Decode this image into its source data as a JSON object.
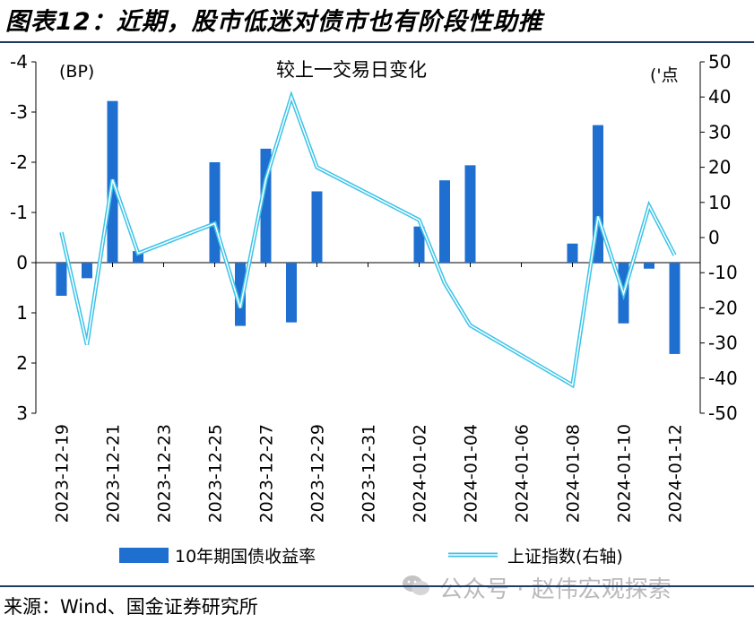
{
  "figure_title": "图表12：近期，股市低迷对债市也有阶段性助推",
  "source": "来源：Wind、国金证券研究所",
  "watermark": "公众号 · 赵伟宏观探索",
  "colors": {
    "bar": "#1f6fd1",
    "line": "#3cc3e8",
    "rule": "#1f3b64"
  },
  "chart_data": {
    "type": "bar",
    "title": "较上一交易日变化",
    "left_axis_unit": "(BP)",
    "right_axis_unit": "('点",
    "left_axis": {
      "min": -4,
      "max": 3,
      "inverted": true,
      "ticks": [
        -4,
        -3,
        -2,
        -1,
        0,
        1,
        2,
        3
      ]
    },
    "right_axis": {
      "min": -50,
      "max": 50,
      "ticks": [
        50,
        40,
        30,
        20,
        10,
        0,
        -10,
        -20,
        -30,
        -40,
        -50
      ]
    },
    "x_tick_labels": [
      "2023-12-19",
      "2023-12-21",
      "2023-12-23",
      "2023-12-25",
      "2023-12-27",
      "2023-12-29",
      "2023-12-31",
      "2024-01-02",
      "2024-01-04",
      "2024-01-06",
      "2024-01-08",
      "2024-01-10",
      "2024-01-12"
    ],
    "categories": [
      "2023-12-19",
      "2023-12-20",
      "2023-12-21",
      "2023-12-22",
      "2023-12-25",
      "2023-12-26",
      "2023-12-27",
      "2023-12-28",
      "2023-12-29",
      "2024-01-02",
      "2024-01-03",
      "2024-01-04",
      "2024-01-05",
      "2024-01-08",
      "2024-01-09",
      "2024-01-10",
      "2024-01-11",
      "2024-01-12"
    ],
    "series": [
      {
        "name": "10年期国债收益率",
        "kind": "bar",
        "axis": "left",
        "values": [
          0.66,
          0.31,
          -3.22,
          -0.23,
          -2.0,
          1.26,
          -2.27,
          1.19,
          -1.42,
          -0.72,
          -1.64,
          -1.94,
          null,
          -0.38,
          -2.74,
          1.21,
          0.12,
          1.82
        ]
      },
      {
        "name": "上证指数(右轴)",
        "kind": "line",
        "axis": "right",
        "values": [
          1.5,
          -30.5,
          16.5,
          -4.5,
          4.0,
          -20.0,
          16.5,
          40.0,
          20.0,
          5.0,
          -13.0,
          -25.0,
          null,
          -42.0,
          6.0,
          -16.0,
          9.0,
          -5.0
        ]
      }
    ],
    "legend_position": "bottom"
  }
}
